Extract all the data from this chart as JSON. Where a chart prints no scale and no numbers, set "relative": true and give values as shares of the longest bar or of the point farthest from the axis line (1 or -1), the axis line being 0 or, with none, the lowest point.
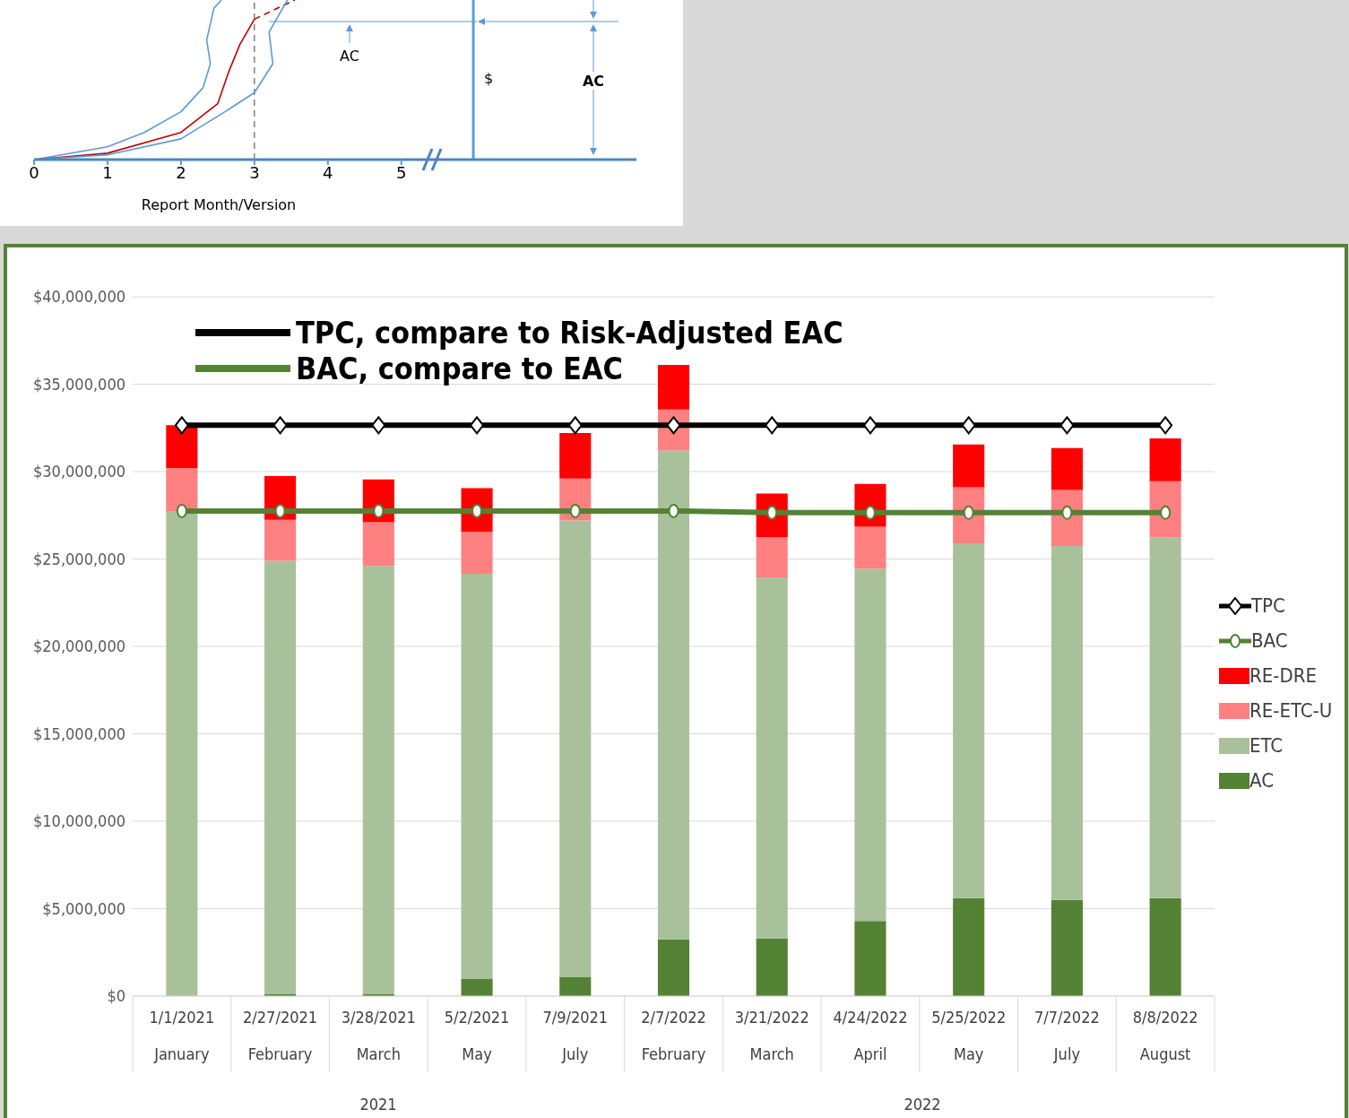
{
  "chart_data": [
    {
      "type": "line",
      "relative": true,
      "xlabel": "Report Month/Version",
      "xlim": [
        0,
        8.2
      ],
      "xticks": [
        0,
        1,
        2,
        3,
        4,
        5
      ],
      "tick_labels": "x",
      "marker": "none",
      "series": [
        {
          "color": "#5b9bd5",
          "x": [
            0,
            1,
            1.5,
            2,
            2.3,
            2.4,
            2.35,
            2.45,
            2.55
          ],
          "values": [
            0,
            0.08,
            0.17,
            0.3,
            0.45,
            0.6,
            0.75,
            0.95,
            1
          ]
        },
        {
          "color": "#c00000",
          "x": [
            0,
            1,
            2,
            2.5,
            2.65,
            2.8,
            3
          ],
          "values": [
            0,
            0.04,
            0.17,
            0.35,
            0.55,
            0.72,
            0.88
          ]
        },
        {
          "color": "#c00000",
          "line_style": "dashed",
          "x": [
            3,
            3.55
          ],
          "values": [
            0.88,
            1
          ]
        },
        {
          "color": "#5b9bd5",
          "x": [
            0,
            1,
            2,
            2.6,
            3,
            3.25,
            3.2,
            3.3,
            3.45
          ],
          "values": [
            0,
            0.03,
            0.13,
            0.3,
            0.42,
            0.6,
            0.8,
            0.88,
            1
          ]
        }
      ],
      "ref_lines": [
        {
          "axis": "x",
          "value": 3,
          "color": "#404040",
          "line_style": "dashed"
        },
        {
          "axis": "x",
          "value": 5.98,
          "color": "#5b9bd5",
          "line_style": "solid"
        }
      ],
      "annotations": [
        "AC",
        "$",
        "AC"
      ]
    },
    {
      "type": "bar",
      "stacked": true,
      "categories": [
        "1/1/2021\nJanuary",
        "2/27/2021\nFebruary",
        "3/28/2021\nMarch",
        "5/2/2021\nMay",
        "7/9/2021\nJuly",
        "2/7/2022\nFebruary",
        "3/21/2022\nMarch",
        "4/24/2022\nApril",
        "5/25/2022\nMay",
        "7/7/2022\nJuly",
        "8/8/2022\nAugust"
      ],
      "series": [
        {
          "name": "AC",
          "color": "#548235",
          "values": [
            0,
            100000,
            100000,
            1000000,
            1100000,
            3250000,
            3300000,
            4300000,
            5600000,
            5500000,
            5600000
          ]
        },
        {
          "name": "ETC",
          "color": "#a9c19a",
          "values": [
            27750000,
            24800000,
            24500000,
            23150000,
            26100000,
            27950000,
            20650000,
            20150000,
            20300000,
            20250000,
            20650000
          ]
        },
        {
          "name": "RE-ETC-U",
          "color": "#ff8080",
          "values": [
            2450000,
            2350000,
            2500000,
            2400000,
            2400000,
            2350000,
            2300000,
            2400000,
            3200000,
            3200000,
            3200000
          ]
        },
        {
          "name": "RE-DRE",
          "color": "#ff0000",
          "values": [
            2450000,
            2500000,
            2450000,
            2500000,
            2600000,
            2550000,
            2500000,
            2450000,
            2450000,
            2400000,
            2450000
          ]
        },
        {
          "name": "BAC",
          "type": "line",
          "color": "#548235",
          "marker": "circle",
          "values": [
            27750000,
            27750000,
            27750000,
            27750000,
            27750000,
            27750000,
            27650000,
            27650000,
            27650000,
            27650000,
            27650000
          ]
        },
        {
          "name": "TPC",
          "type": "line",
          "color": "#000000",
          "marker": "diamond",
          "values": [
            32650000,
            32650000,
            32650000,
            32650000,
            32650000,
            32650000,
            32650000,
            32650000,
            32650000,
            32650000,
            32650000
          ]
        }
      ],
      "ylim": [
        0,
        40000000
      ],
      "yticks": [
        {
          "value": 0,
          "label": "$0"
        },
        {
          "value": 5000000,
          "label": "$5,000,000"
        },
        {
          "value": 10000000,
          "label": "$10,000,000"
        },
        {
          "value": 15000000,
          "label": "$15,000,000"
        },
        {
          "value": 20000000,
          "label": "$20,000,000"
        },
        {
          "value": 25000000,
          "label": "$25,000,000"
        },
        {
          "value": 30000000,
          "label": "$30,000,000"
        },
        {
          "value": 35000000,
          "label": "$35,000,000"
        },
        {
          "value": 40000000,
          "label": "$40,000,000"
        }
      ],
      "grid": "y",
      "legend": "right",
      "annotations": [
        "TPC, compare to Risk-Adjusted EAC",
        "BAC, compare to EAC",
        "2021",
        "2022"
      ]
    }
  ]
}
